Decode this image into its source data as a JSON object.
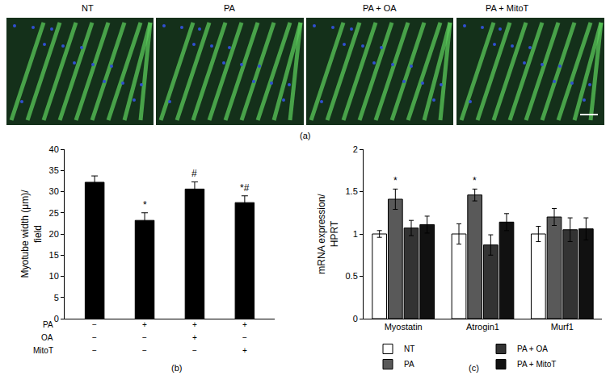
{
  "images": {
    "caption": "(a)",
    "labels": [
      "NT",
      "PA",
      "PA + OA",
      "PA + MitoT"
    ]
  },
  "chart_data": [
    {
      "type": "bar",
      "caption": "(b)",
      "ylabel": "Myotube width (μm)/\nfield",
      "categories": [
        null,
        null,
        null,
        null
      ],
      "values": [
        32.2,
        23.2,
        30.6,
        27.4
      ],
      "errors": [
        1.5,
        1.8,
        1.7,
        1.6
      ],
      "color": "#000000",
      "ylim": [
        0,
        40
      ],
      "yticks": [
        0,
        5,
        10,
        15,
        20,
        25,
        30,
        35,
        40
      ],
      "annotations": [
        {
          "index": 1,
          "text": "*"
        },
        {
          "index": 2,
          "text": "#"
        },
        {
          "index": 3,
          "text": "*#"
        }
      ],
      "condition_table": [
        {
          "label": "PA",
          "marks": [
            "−",
            "+",
            "+",
            "+"
          ]
        },
        {
          "label": "OA",
          "marks": [
            "−",
            "−",
            "+",
            "−"
          ]
        },
        {
          "label": "MitoT",
          "marks": [
            "−",
            "−",
            "−",
            "+"
          ]
        }
      ]
    },
    {
      "type": "bar",
      "caption": "(c)",
      "ylabel": "mRNA expression/\nHPRT",
      "categories": [
        "Myostatin",
        "Atrogin1",
        "Murf1"
      ],
      "series": [
        {
          "name": "NT",
          "color": "#ffffff",
          "values": [
            1.0,
            1.0,
            1.0
          ],
          "errors": [
            0.04,
            0.12,
            0.09
          ]
        },
        {
          "name": "PA",
          "color": "#595959",
          "values": [
            1.41,
            1.46,
            1.2
          ],
          "errors": [
            0.12,
            0.07,
            0.1
          ]
        },
        {
          "name": "PA + OA",
          "color": "#333333",
          "values": [
            1.07,
            0.87,
            1.05
          ],
          "errors": [
            0.09,
            0.12,
            0.14
          ]
        },
        {
          "name": "PA + MitoT",
          "color": "#111111",
          "values": [
            1.11,
            1.14,
            1.06
          ],
          "errors": [
            0.1,
            0.1,
            0.13
          ]
        }
      ],
      "ylim": [
        0,
        2
      ],
      "yticks": [
        0,
        0.5,
        1,
        1.5,
        2
      ],
      "legend": "bottom",
      "annotations": [
        {
          "category": "Myostatin",
          "series": "PA",
          "text": "*"
        },
        {
          "category": "Atrogin1",
          "series": "PA",
          "text": "*"
        }
      ]
    }
  ]
}
